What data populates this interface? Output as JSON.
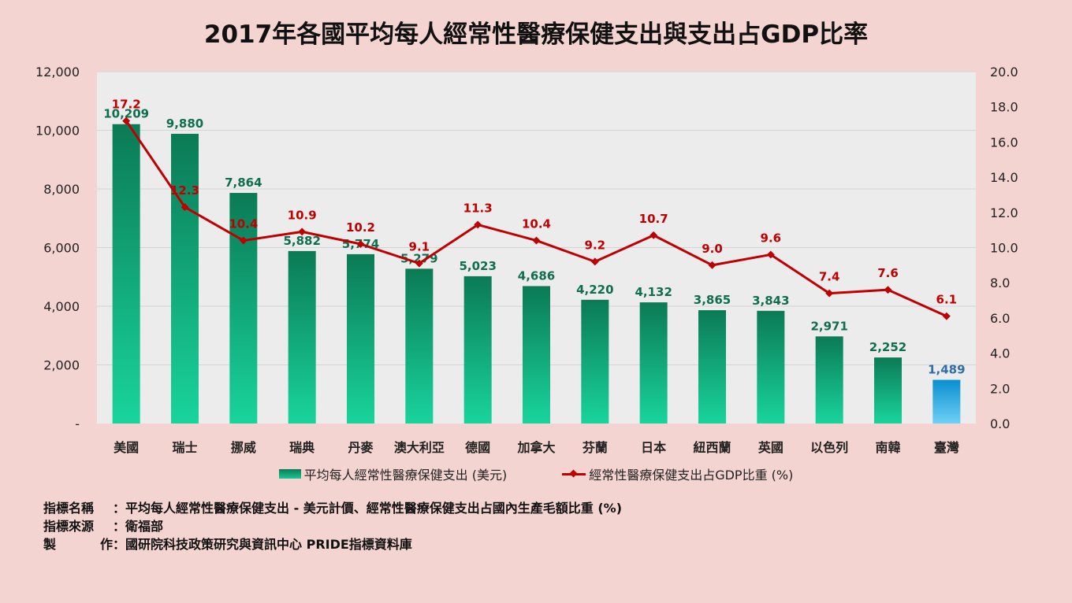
{
  "title": "2017年各國平均每人經常性醫療保健支出與支出占GDP比率",
  "chart_data": {
    "type": "bar+line",
    "title": "2017年各國平均每人經常性醫療保健支出與支出占GDP比率",
    "categories": [
      "美國",
      "瑞士",
      "挪威",
      "瑞典",
      "丹麥",
      "澳大利亞",
      "德國",
      "加拿大",
      "芬蘭",
      "日本",
      "紐西蘭",
      "英國",
      "以色列",
      "南韓",
      "臺灣"
    ],
    "highlight_category": "臺灣",
    "series": [
      {
        "name": "平均每人經常性醫療保健支出 (美元)",
        "type": "bar",
        "axis": "left",
        "values": [
          10209,
          9880,
          7864,
          5882,
          5774,
          5279,
          5023,
          4686,
          4220,
          4132,
          3865,
          3843,
          2971,
          2252,
          1489
        ],
        "labels": [
          "10,209",
          "9,880",
          "7,864",
          "5,882",
          "5,774",
          "5,279",
          "5,023",
          "4,686",
          "4,220",
          "4,132",
          "3,865",
          "3,843",
          "2,971",
          "2,252",
          "1,489"
        ]
      },
      {
        "name": "經常性醫療保健支出占GDP比重 (%)",
        "type": "line",
        "axis": "right",
        "values": [
          17.2,
          12.3,
          10.4,
          10.9,
          10.2,
          9.1,
          11.3,
          10.4,
          9.2,
          10.7,
          9.0,
          9.6,
          7.4,
          7.6,
          6.1
        ],
        "labels": [
          "17.2",
          "12.3",
          "10.4",
          "10.9",
          "10.2",
          "9.1",
          "11.3",
          "10.4",
          "9.2",
          "10.7",
          "9.0",
          "9.6",
          "7.4",
          "7.6",
          "6.1"
        ]
      }
    ],
    "y_left": {
      "range": [
        0,
        12000
      ],
      "ticks": [
        0,
        2000,
        4000,
        6000,
        8000,
        10000,
        12000
      ],
      "tick_labels": [
        "-",
        "2,000",
        "4,000",
        "6,000",
        "8,000",
        "10,000",
        "12,000"
      ]
    },
    "y_right": {
      "range": [
        0,
        20
      ],
      "ticks": [
        0,
        2,
        4,
        6,
        8,
        10,
        12,
        14,
        16,
        18,
        20
      ],
      "tick_labels": [
        "0.0",
        "2.0",
        "4.0",
        "6.0",
        "8.0",
        "10.0",
        "12.0",
        "14.0",
        "16.0",
        "18.0",
        "20.0"
      ]
    },
    "grid": true,
    "legend_position": "bottom",
    "colors": {
      "bar_top": "#0b7a55",
      "bar_bottom": "#19d49c",
      "highlight_bar_top": "#0a8fd0",
      "highlight_bar_bottom": "#6fd0f5",
      "bar_label": "#0e6e4e",
      "highlight_bar_label": "#2f6ea8",
      "line": "#c00000",
      "highlight_category_label": "#d0181e",
      "plot_background": "#ececec",
      "gridline": "#d4d4d4"
    }
  },
  "legend": {
    "bar_label": "平均每人經常性醫療保健支出 (美元)",
    "line_label": "經常性醫療保健支出占GDP比重 (%)"
  },
  "footnotes": [
    {
      "key": "指標名稱",
      "sep": "：",
      "value": "平均每人經常性醫療保健支出 - 美元計價、經常性醫療保健支出占國內生產毛額比重 (%)"
    },
    {
      "key": "指標來源",
      "sep": "：",
      "value": "衛福部"
    },
    {
      "key_chars": [
        "製",
        "作"
      ],
      "sep": "：",
      "value": "國研院科技政策研究與資訊中心 PRIDE指標資料庫"
    }
  ]
}
